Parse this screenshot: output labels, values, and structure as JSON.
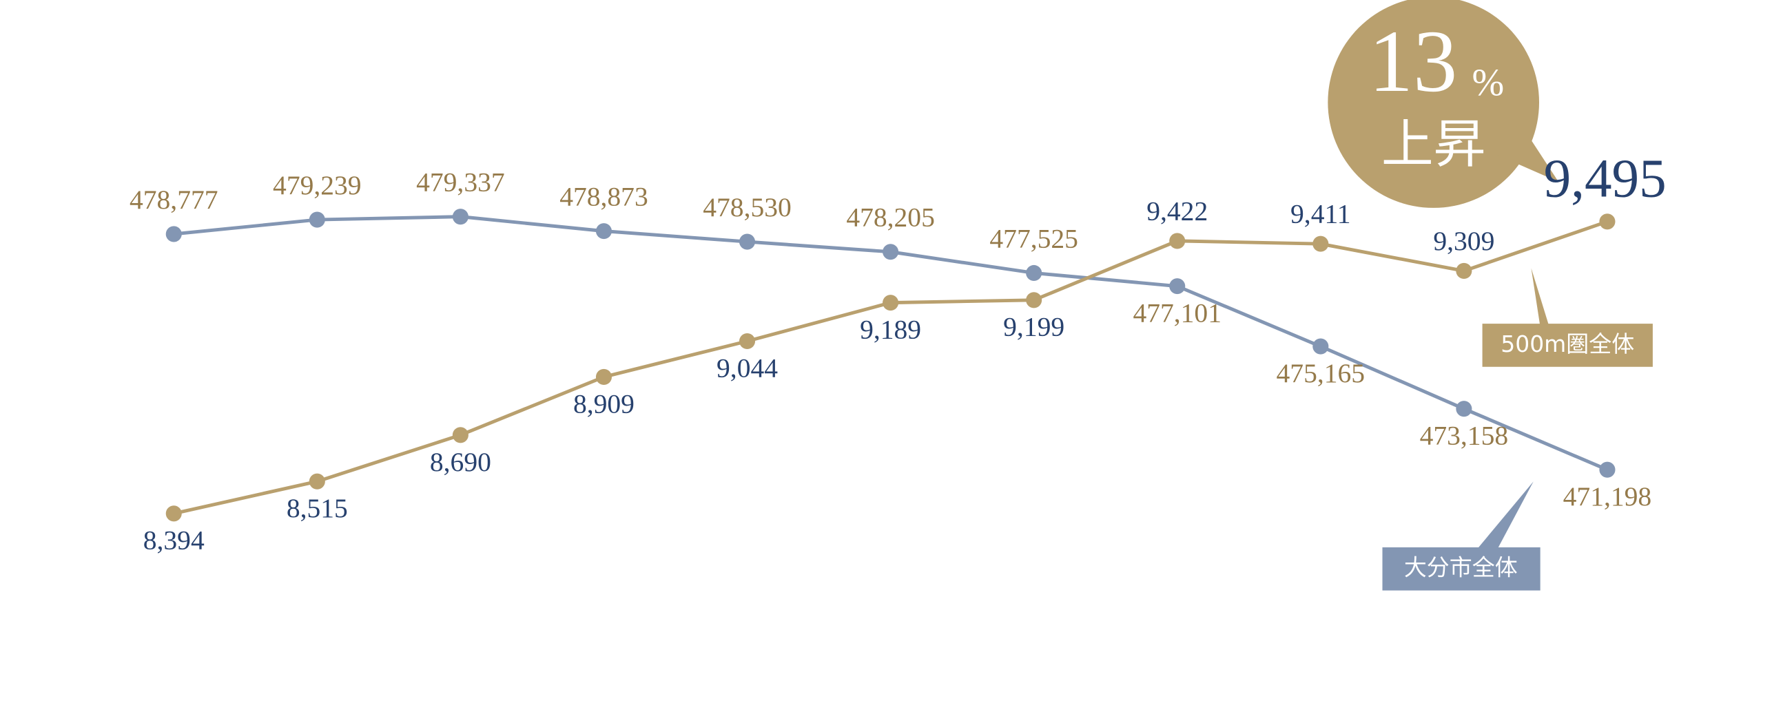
{
  "chart_data": {
    "type": "line",
    "ylim": [
      463700,
      486300
    ],
    "y2lim": [
      7680,
      10330
    ],
    "series": [
      {
        "name": "大分市全体",
        "color": "#8396b3",
        "values": [
          478777,
          479239,
          479337,
          478873,
          478530,
          478205,
          477525,
          477101,
          475165,
          473158,
          471198
        ],
        "value_labels": [
          "478,777",
          "479,239",
          "479,337",
          "478,873",
          "478,530",
          "478,205",
          "477,525",
          "477,101",
          "475,165",
          "473,158",
          "471,198"
        ]
      },
      {
        "name": "500m圏全体",
        "color": "#b9a06e",
        "axis": "y2",
        "values": [
          8394,
          8515,
          8690,
          8909,
          9044,
          9189,
          9199,
          9422,
          9411,
          9309,
          9495
        ],
        "value_labels": [
          "8,394",
          "8,515",
          "8,690",
          "8,909",
          "9,044",
          "9,189",
          "9,199",
          "9,422",
          "9,411",
          "9,309",
          "9,495"
        ]
      }
    ],
    "annotation": {
      "value": 13,
      "unit": "%",
      "text": "上昇"
    }
  }
}
